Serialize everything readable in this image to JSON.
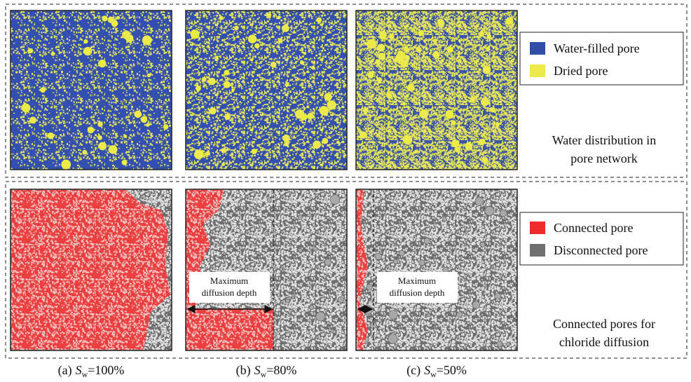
{
  "top_row": {
    "legend": [
      "Water-filled pore",
      "Dried pore"
    ],
    "note": [
      "Water distribution in",
      "pore network"
    ]
  },
  "bottom_row": {
    "legend": [
      "Connected pore",
      "Disconnected pore"
    ],
    "note": [
      "Connected pores for",
      "chloride diffusion"
    ],
    "annotations": [
      [
        "Maximum",
        "diffusion depth"
      ],
      [
        "Maximum",
        "diffusion depth"
      ]
    ]
  },
  "captions": [
    {
      "label": "(a)",
      "symbol": "S",
      "subscript": "w",
      "value": "=100%"
    },
    {
      "label": "(b)",
      "symbol": "S",
      "subscript": "w",
      "value": "=80%"
    },
    {
      "label": "(c)",
      "symbol": "S",
      "subscript": "w",
      "value": "=50%"
    }
  ]
}
